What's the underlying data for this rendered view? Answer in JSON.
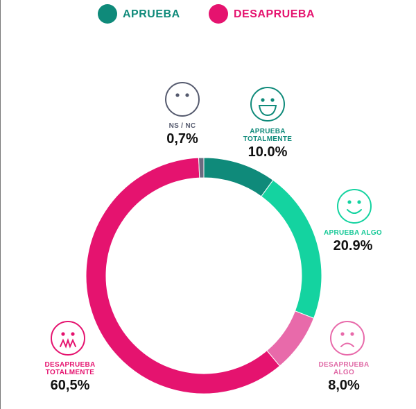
{
  "chart_data": {
    "type": "donut",
    "legend": [
      {
        "name": "APRUEBA",
        "color": "#0f8a7a"
      },
      {
        "name": "DESAPRUEBA",
        "color": "#e5136f"
      }
    ],
    "categories": [
      "APRUEBA TOTALMENTE",
      "APRUEBA ALGO",
      "DESAPRUEBA ALGO",
      "DESAPRUEBA TOTALMENTE",
      "NS / NC"
    ],
    "values": [
      10.0,
      20.9,
      8.0,
      60.5,
      0.7
    ],
    "value_labels": [
      "10.0%",
      "20.9%",
      "8,0%",
      "60,5%",
      "0,7%"
    ],
    "colors": [
      "#0f8a7a",
      "#14d3a0",
      "#e86aaa",
      "#e5136f",
      "#6b6b80"
    ]
  }
}
